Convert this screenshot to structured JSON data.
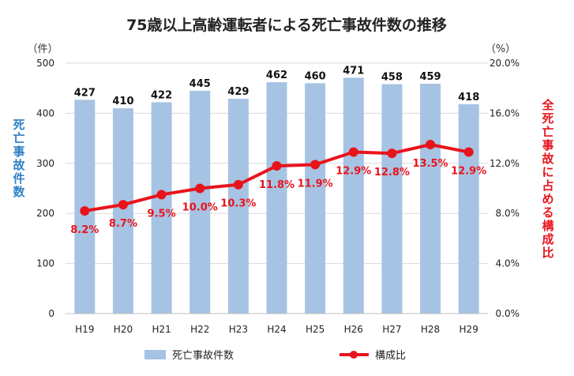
{
  "chart_data": {
    "type": "bar",
    "title": "75歳以上高齢運転者による死亡事故件数の推移",
    "categories": [
      "H19",
      "H20",
      "H21",
      "H22",
      "H23",
      "H24",
      "H25",
      "H26",
      "H27",
      "H28",
      "H29"
    ],
    "series": [
      {
        "name": "死亡事故件数",
        "type": "bar",
        "axis": "left",
        "color": "#a6c3e3",
        "values": [
          427,
          410,
          422,
          445,
          429,
          462,
          460,
          471,
          458,
          459,
          418
        ],
        "labels": [
          "427",
          "410",
          "422",
          "445",
          "429",
          "462",
          "460",
          "471",
          "458",
          "459",
          "418"
        ]
      },
      {
        "name": "構成比",
        "type": "line",
        "axis": "right",
        "color": "#e8141c",
        "values": [
          8.2,
          8.7,
          9.5,
          10.0,
          10.3,
          11.8,
          11.9,
          12.9,
          12.8,
          13.5,
          12.9
        ],
        "labels": [
          "8.2%",
          "8.7%",
          "9.5%",
          "10.0%",
          "10.3%",
          "11.8%",
          "11.9%",
          "12.9%",
          "12.8%",
          "13.5%",
          "12.9%"
        ]
      }
    ],
    "y_left": {
      "unit": "（件）",
      "label": "死亡事故件数",
      "label_color": "#2f80c6",
      "ylim": [
        0,
        500
      ],
      "ticks": [
        0,
        100,
        200,
        300,
        400,
        500
      ],
      "tick_labels": [
        "0",
        "100",
        "200",
        "300",
        "400",
        "500"
      ]
    },
    "y_right": {
      "unit": "（%）",
      "label": "全死亡事故に占める構成比",
      "label_color": "#e8141c",
      "ylim": [
        0,
        20
      ],
      "ticks": [
        0,
        4,
        8,
        12,
        16,
        20
      ],
      "tick_labels": [
        "0.0%",
        "4.0%",
        "8.0%",
        "12.0%",
        "16.0%",
        "20.0%"
      ]
    },
    "grid": true,
    "legend_position": "bottom"
  }
}
